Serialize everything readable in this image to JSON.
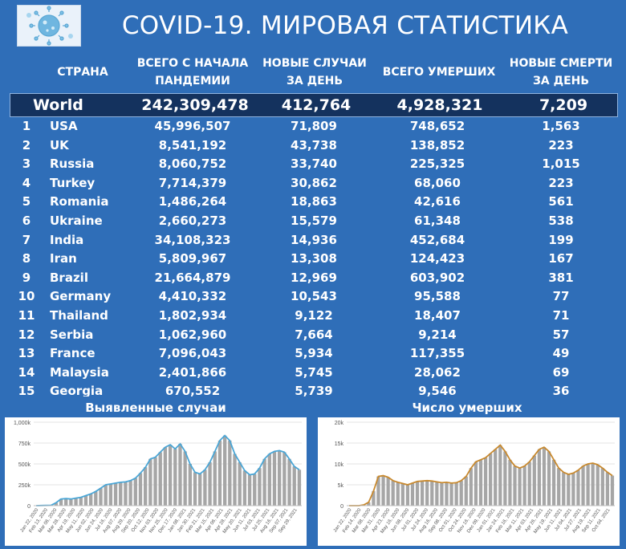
{
  "header": {
    "title": "COVID-19. МИРОВАЯ СТАТИСТИКА",
    "logo_icon": "coronavirus-icon"
  },
  "table": {
    "columns": {
      "country": "СТРАНА",
      "total_cases": "ВСЕГО С НАЧАЛА ПАНДЕМИИ",
      "new_cases": "НОВЫЕ СЛУЧАИ ЗА ДЕНЬ",
      "total_deaths": "ВСЕГО УМЕРШИХ",
      "new_deaths": "НОВЫЕ СМЕРТИ ЗА ДЕНЬ"
    },
    "world": {
      "name": "World",
      "total_cases": "242,309,478",
      "new_cases": "412,764",
      "total_deaths": "4,928,321",
      "new_deaths": "7,209"
    },
    "rows": [
      {
        "rank": "1",
        "country": "USA",
        "total_cases": "45,996,507",
        "new_cases": "71,809",
        "total_deaths": "748,652",
        "new_deaths": "1,563"
      },
      {
        "rank": "2",
        "country": "UK",
        "total_cases": "8,541,192",
        "new_cases": "43,738",
        "total_deaths": "138,852",
        "new_deaths": "223"
      },
      {
        "rank": "3",
        "country": "Russia",
        "total_cases": "8,060,752",
        "new_cases": "33,740",
        "total_deaths": "225,325",
        "new_deaths": "1,015"
      },
      {
        "rank": "4",
        "country": "Turkey",
        "total_cases": "7,714,379",
        "new_cases": "30,862",
        "total_deaths": "68,060",
        "new_deaths": "223"
      },
      {
        "rank": "5",
        "country": "Romania",
        "total_cases": "1,486,264",
        "new_cases": "18,863",
        "total_deaths": "42,616",
        "new_deaths": "561"
      },
      {
        "rank": "6",
        "country": "Ukraine",
        "total_cases": "2,660,273",
        "new_cases": "15,579",
        "total_deaths": "61,348",
        "new_deaths": "538"
      },
      {
        "rank": "7",
        "country": "India",
        "total_cases": "34,108,323",
        "new_cases": "14,936",
        "total_deaths": "452,684",
        "new_deaths": "199"
      },
      {
        "rank": "8",
        "country": "Iran",
        "total_cases": "5,809,967",
        "new_cases": "13,308",
        "total_deaths": "124,423",
        "new_deaths": "167"
      },
      {
        "rank": "9",
        "country": "Brazil",
        "total_cases": "21,664,879",
        "new_cases": "12,969",
        "total_deaths": "603,902",
        "new_deaths": "381"
      },
      {
        "rank": "10",
        "country": "Germany",
        "total_cases": "4,410,332",
        "new_cases": "10,543",
        "total_deaths": "95,588",
        "new_deaths": "77"
      },
      {
        "rank": "11",
        "country": "Thailand",
        "total_cases": "1,802,934",
        "new_cases": "9,122",
        "total_deaths": "18,407",
        "new_deaths": "71"
      },
      {
        "rank": "12",
        "country": "Serbia",
        "total_cases": "1,062,960",
        "new_cases": "7,664",
        "total_deaths": "9,214",
        "new_deaths": "57"
      },
      {
        "rank": "13",
        "country": "France",
        "total_cases": "7,096,043",
        "new_cases": "5,934",
        "total_deaths": "117,355",
        "new_deaths": "49"
      },
      {
        "rank": "14",
        "country": "Malaysia",
        "total_cases": "2,401,866",
        "new_cases": "5,745",
        "total_deaths": "28,062",
        "new_deaths": "69"
      },
      {
        "rank": "15",
        "country": "Georgia",
        "total_cases": "670,552",
        "new_cases": "5,739",
        "total_deaths": "9,546",
        "new_deaths": "36"
      }
    ]
  },
  "chart_data": [
    {
      "type": "bar",
      "title": "Выявленные случаи",
      "ylim": [
        0,
        1000000
      ],
      "yticks": [
        0,
        250000,
        500000,
        750000,
        1000000
      ],
      "ytick_labels": [
        "0",
        "250k",
        "500k",
        "750k",
        "1,000k"
      ],
      "xtick_labels": [
        "Jan 22, 2020",
        "Feb 13, 2020",
        "Mar 06, 2020",
        "Mar 28, 2020",
        "Apr 19, 2020",
        "May 11, 2020",
        "Jun 02, 2020",
        "Jun 24, 2020",
        "Jul 16, 2020",
        "Aug 07, 2020",
        "Aug 29, 2020",
        "Sep 20, 2020",
        "Oct 12, 2020",
        "Nov 03, 2020",
        "Nov 25, 2020",
        "Dec 17, 2020",
        "Jan 08, 2021",
        "Jan 30, 2021",
        "Feb 21, 2021",
        "Mar 15, 2021",
        "Apr 06, 2021",
        "Apr 28, 2021",
        "May 20, 2021",
        "Jun 11, 2021",
        "Jul 03, 2021",
        "Jul 25, 2021",
        "Aug 16, 2021",
        "Sep 07, 2021",
        "Sep 29, 2021"
      ],
      "series": [
        {
          "kind": "bar",
          "color": "#a6a6a6",
          "values": [
            0,
            2000,
            3000,
            4000,
            35000,
            80000,
            85000,
            80000,
            90000,
            100000,
            120000,
            140000,
            170000,
            210000,
            250000,
            260000,
            270000,
            280000,
            285000,
            300000,
            330000,
            390000,
            460000,
            560000,
            580000,
            640000,
            700000,
            730000,
            680000,
            740000,
            650000,
            500000,
            400000,
            380000,
            430000,
            520000,
            650000,
            780000,
            840000,
            780000,
            620000,
            520000,
            420000,
            370000,
            380000,
            450000,
            560000,
            620000,
            650000,
            660000,
            640000,
            560000,
            470000,
            430000
          ]
        },
        {
          "kind": "line",
          "color": "#4aa6d6",
          "values": [
            0,
            2000,
            3000,
            4000,
            35000,
            80000,
            85000,
            80000,
            90000,
            100000,
            120000,
            140000,
            170000,
            210000,
            250000,
            260000,
            270000,
            280000,
            285000,
            300000,
            330000,
            390000,
            460000,
            560000,
            580000,
            640000,
            700000,
            730000,
            680000,
            740000,
            650000,
            500000,
            400000,
            380000,
            430000,
            520000,
            650000,
            780000,
            840000,
            780000,
            620000,
            520000,
            420000,
            370000,
            380000,
            450000,
            560000,
            620000,
            650000,
            660000,
            640000,
            560000,
            470000,
            430000
          ]
        }
      ]
    },
    {
      "type": "bar",
      "title": "Число умерших",
      "ylim": [
        0,
        20000
      ],
      "yticks": [
        0,
        5000,
        10000,
        15000,
        20000
      ],
      "ytick_labels": [
        "0",
        "5k",
        "10k",
        "15k",
        "20k"
      ],
      "xtick_labels": [
        "Jan 22, 2020",
        "Feb 14, 2020",
        "Mar 08, 2020",
        "Mar 31, 2020",
        "Apr 23, 2020",
        "May 16, 2020",
        "Jun 08, 2020",
        "Jul 01, 2020",
        "Jul 24, 2020",
        "Aug 16, 2020",
        "Sep 08, 2020",
        "Oct 01, 2020",
        "Oct 24, 2020",
        "Nov 16, 2020",
        "Dec 09, 2020",
        "Jan 01, 2021",
        "Jan 24, 2021",
        "Feb 16, 2021",
        "Mar 11, 2021",
        "Apr 03, 2021",
        "Apr 26, 2021",
        "May 19, 2021",
        "Jun 11, 2021",
        "Jul 04, 2021",
        "Jul 27, 2021",
        "Aug 19, 2021",
        "Sep 11, 2021",
        "Oct 04, 2021"
      ],
      "series": [
        {
          "kind": "bar",
          "color": "#a6a6a6",
          "values": [
            0,
            0,
            0,
            200,
            800,
            3500,
            7000,
            7200,
            6800,
            6000,
            5600,
            5300,
            5000,
            5400,
            5800,
            5900,
            6000,
            5900,
            5700,
            5500,
            5600,
            5400,
            5500,
            6000,
            7000,
            9000,
            10500,
            11000,
            11500,
            12500,
            13500,
            14500,
            13000,
            11000,
            9500,
            9000,
            9500,
            10500,
            12000,
            13500,
            14000,
            13000,
            11000,
            9000,
            8000,
            7500,
            7800,
            8500,
            9500,
            10000,
            10200,
            9800,
            9000,
            8000,
            7200
          ]
        },
        {
          "kind": "line",
          "color": "#c8892e",
          "values": [
            0,
            0,
            0,
            200,
            800,
            3500,
            7000,
            7200,
            6800,
            6000,
            5600,
            5300,
            5000,
            5400,
            5800,
            5900,
            6000,
            5900,
            5700,
            5500,
            5600,
            5400,
            5500,
            6000,
            7000,
            9000,
            10500,
            11000,
            11500,
            12500,
            13500,
            14500,
            13000,
            11000,
            9500,
            9000,
            9500,
            10500,
            12000,
            13500,
            14000,
            13000,
            11000,
            9000,
            8000,
            7500,
            7800,
            8500,
            9500,
            10000,
            10200,
            9800,
            9000,
            8000,
            7200
          ]
        }
      ]
    }
  ]
}
